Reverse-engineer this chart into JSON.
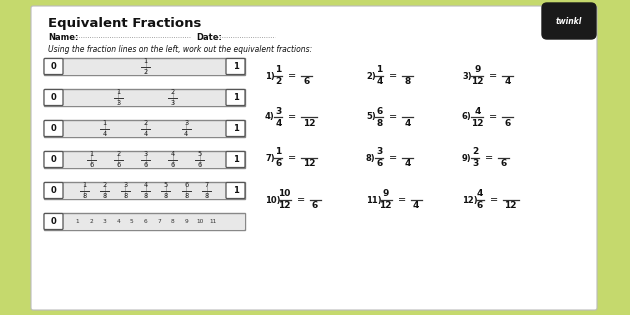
{
  "bg_outer": "#c5d96d",
  "bg_inner": "#ffffff",
  "title": "Equivalent Fractions",
  "name_label": "Name:",
  "date_label": "Date:",
  "instruction": "Using the fraction lines on the left, work out the equivalent fractions:",
  "twinkl_text": "twinkl",
  "fraction_bars": [
    {
      "fractions": [
        [
          "1",
          "2"
        ]
      ],
      "positions": [
        0.5
      ]
    },
    {
      "fractions": [
        [
          "1",
          "3"
        ],
        [
          "2",
          "3"
        ]
      ],
      "positions": [
        0.3333,
        0.6667
      ]
    },
    {
      "fractions": [
        [
          "1",
          "4"
        ],
        [
          "2",
          "4"
        ],
        [
          "3",
          "4"
        ]
      ],
      "positions": [
        0.25,
        0.5,
        0.75
      ]
    },
    {
      "fractions": [
        [
          "1",
          "6"
        ],
        [
          "2",
          "6"
        ],
        [
          "3",
          "6"
        ],
        [
          "4",
          "6"
        ],
        [
          "5",
          "6"
        ]
      ],
      "positions": [
        0.1667,
        0.3333,
        0.5,
        0.6667,
        0.8333
      ]
    },
    {
      "fractions": [
        [
          "1",
          "8"
        ],
        [
          "2",
          "8"
        ],
        [
          "3",
          "8"
        ],
        [
          "4",
          "8"
        ],
        [
          "5",
          "8"
        ],
        [
          "6",
          "8"
        ],
        [
          "7",
          "8"
        ]
      ],
      "positions": [
        0.125,
        0.25,
        0.375,
        0.5,
        0.625,
        0.75,
        0.875
      ]
    }
  ],
  "exercises": [
    {
      "num": "1)",
      "top1": "1",
      "bot1": "2",
      "bot2": "6"
    },
    {
      "num": "2)",
      "top1": "1",
      "bot1": "4",
      "bot2": "8"
    },
    {
      "num": "3)",
      "top1": "9",
      "bot1": "12",
      "bot2": "4"
    },
    {
      "num": "4)",
      "top1": "3",
      "bot1": "4",
      "bot2": "12"
    },
    {
      "num": "5)",
      "top1": "6",
      "bot1": "8",
      "bot2": "4"
    },
    {
      "num": "6)",
      "top1": "4",
      "bot1": "12",
      "bot2": "6"
    },
    {
      "num": "7)",
      "top1": "1",
      "bot1": "6",
      "bot2": "12"
    },
    {
      "num": "8)",
      "top1": "3",
      "bot1": "6",
      "bot2": "4"
    },
    {
      "num": "9)",
      "top1": "2",
      "bot1": "3",
      "bot2": "6"
    },
    {
      "num": "10)",
      "top1": "10",
      "bot1": "12",
      "bot2": "6"
    },
    {
      "num": "11)",
      "top1": "9",
      "bot1": "12",
      "bot2": "4"
    },
    {
      "num": "12)",
      "top1": "4",
      "bot1": "6",
      "bot2": "12"
    }
  ],
  "bottom_bar_nums": [
    "1",
    "2",
    "3",
    "4",
    "5",
    "6",
    "7",
    "8",
    "9",
    "10",
    "11"
  ]
}
